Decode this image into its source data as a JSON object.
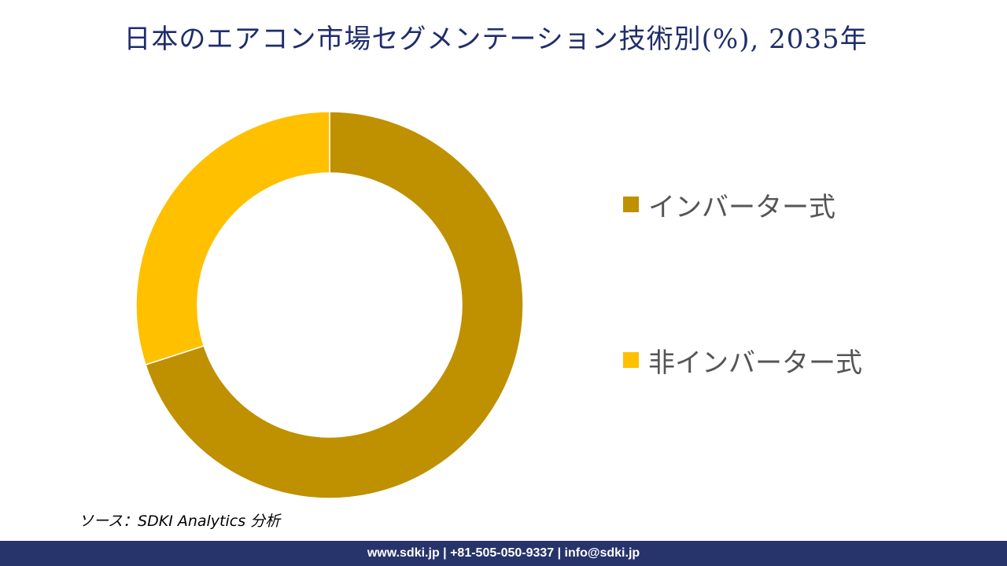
{
  "colors": {
    "title": "#1f2d6b",
    "footer_bg": "#27346b",
    "inverter": "#bf9000",
    "non_inverter": "#ffc000"
  },
  "chart_data": {
    "type": "pie",
    "variant": "donut",
    "title": "日本のエアコン市場セグメンテーション技術別(%), 2035年",
    "categories": [
      "インバーター式",
      "非インバーター式"
    ],
    "values": [
      70,
      30
    ],
    "colors": [
      "#bf9000",
      "#ffc000"
    ],
    "legend_position": "right"
  },
  "source_text": "ソース：SDKI Analytics 分析",
  "footer_text": "www.sdki.jp | +81-505-050-9337 | info@sdki.jp"
}
